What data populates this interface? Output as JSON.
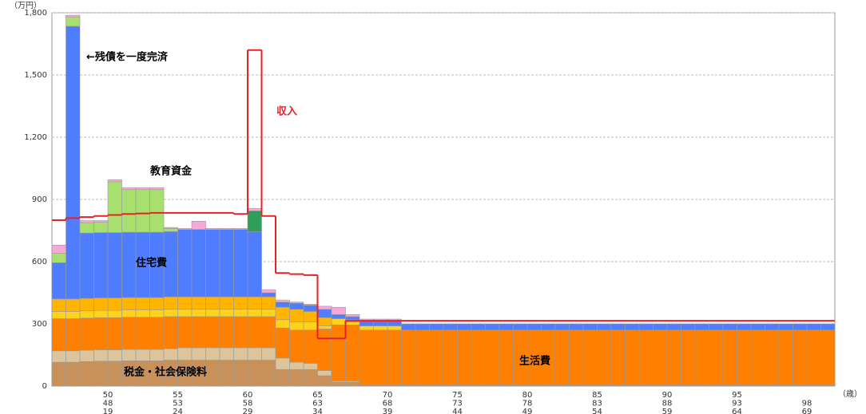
{
  "chart_data": {
    "type": "stacked-bar",
    "y_unit": "（万円）",
    "x_unit": "（歳）",
    "annotation": "←残債を一度完済",
    "ylim": [
      0,
      1800
    ],
    "yticks": [
      0,
      300,
      600,
      900,
      {
        "value": 1200,
        "label": "1,200"
      },
      {
        "value": 1500,
        "label": "1,500"
      },
      {
        "value": 1800,
        "label": "1,800"
      }
    ],
    "grid": true,
    "categories": [
      null,
      null,
      null,
      null,
      [
        "50",
        "48",
        "19"
      ],
      null,
      null,
      null,
      null,
      [
        "55",
        "53",
        "24"
      ],
      null,
      null,
      null,
      null,
      [
        "60",
        "58",
        "29"
      ],
      null,
      null,
      null,
      null,
      [
        "65",
        "63",
        "34"
      ],
      null,
      null,
      null,
      null,
      [
        "70",
        "68",
        "39"
      ],
      null,
      null,
      null,
      null,
      [
        "75",
        "73",
        "44"
      ],
      null,
      null,
      null,
      null,
      [
        "80",
        "78",
        "49"
      ],
      null,
      null,
      null,
      null,
      [
        "85",
        "83",
        "54"
      ],
      null,
      null,
      null,
      null,
      [
        "90",
        "88",
        "59"
      ],
      null,
      null,
      null,
      null,
      [
        "95",
        "93",
        "64"
      ],
      null,
      null,
      null,
      null,
      [
        null,
        "98",
        "69"
      ],
      null
    ],
    "series": [
      {
        "name": "税金・社会保険料",
        "color": "#c8915a",
        "values": [
          115,
          115,
          118,
          120,
          120,
          122,
          122,
          122,
          125,
          125,
          125,
          125,
          125,
          125,
          125,
          125,
          80,
          80,
          80,
          50,
          20,
          20,
          10,
          10,
          10,
          8,
          8,
          8,
          8,
          8,
          8,
          8,
          8,
          8,
          8,
          8,
          8,
          8,
          8,
          8,
          8,
          8,
          8,
          8,
          8,
          8,
          8,
          8,
          8,
          8,
          8,
          8,
          8,
          8,
          8,
          8
        ]
      },
      {
        "color": "#dcc49c",
        "values": [
          55,
          55,
          55,
          55,
          55,
          55,
          55,
          55,
          55,
          60,
          60,
          60,
          60,
          60,
          60,
          60,
          55,
          35,
          30,
          25,
          5,
          5,
          0,
          0,
          0,
          0,
          0,
          0,
          0,
          0,
          0,
          0,
          0,
          0,
          0,
          0,
          0,
          0,
          0,
          0,
          0,
          0,
          0,
          0,
          0,
          0,
          0,
          0,
          0,
          0,
          0,
          0,
          0,
          0,
          0,
          0
        ]
      },
      {
        "name": "生活費",
        "color": "#ff8000",
        "values": [
          155,
          155,
          155,
          155,
          155,
          155,
          155,
          155,
          155,
          150,
          150,
          150,
          150,
          150,
          150,
          150,
          145,
          155,
          160,
          200,
          270,
          270,
          260,
          260,
          260,
          262,
          262,
          262,
          262,
          262,
          262,
          262,
          262,
          262,
          262,
          262,
          262,
          262,
          262,
          262,
          262,
          262,
          262,
          262,
          262,
          262,
          262,
          262,
          262,
          262,
          262,
          262,
          262,
          262,
          262,
          262
        ]
      },
      {
        "color": "#ffd21e",
        "values": [
          35,
          35,
          35,
          35,
          35,
          35,
          35,
          35,
          35,
          35,
          35,
          35,
          35,
          35,
          35,
          35,
          40,
          40,
          40,
          15,
          30,
          15,
          20,
          20,
          20,
          0,
          0,
          0,
          0,
          0,
          0,
          0,
          0,
          0,
          0,
          0,
          0,
          0,
          0,
          0,
          0,
          0,
          0,
          0,
          0,
          0,
          0,
          0,
          0,
          0,
          0,
          0,
          0,
          0,
          0,
          0
        ]
      },
      {
        "color": "#ffb400",
        "values": [
          60,
          60,
          60,
          60,
          60,
          60,
          60,
          60,
          60,
          60,
          60,
          60,
          60,
          60,
          60,
          60,
          60,
          60,
          50,
          40,
          0,
          10,
          0,
          0,
          0,
          0,
          0,
          0,
          0,
          0,
          0,
          0,
          0,
          0,
          0,
          0,
          0,
          0,
          0,
          0,
          0,
          0,
          0,
          0,
          0,
          0,
          0,
          0,
          0,
          0,
          0,
          0,
          0,
          0,
          0,
          0
        ]
      },
      {
        "name": "住宅費",
        "color": "#4f7dff",
        "values": [
          175,
          1315,
          315,
          315,
          315,
          315,
          315,
          315,
          315,
          325,
          325,
          325,
          325,
          325,
          315,
          20,
          25,
          30,
          30,
          40,
          20,
          15,
          25,
          25,
          25,
          30,
          30,
          30,
          30,
          30,
          30,
          30,
          30,
          30,
          30,
          30,
          30,
          30,
          30,
          30,
          30,
          30,
          30,
          30,
          30,
          30,
          30,
          30,
          30,
          30,
          30,
          30,
          30,
          30,
          30,
          30
        ]
      },
      {
        "name": "教育資金",
        "color": "#a8e070",
        "values": [
          45,
          45,
          50,
          50,
          245,
          205,
          205,
          205,
          15,
          0,
          0,
          0,
          0,
          0,
          0,
          0,
          0,
          0,
          0,
          0,
          0,
          0,
          0,
          0,
          0,
          0,
          0,
          0,
          0,
          0,
          0,
          0,
          0,
          0,
          0,
          0,
          0,
          0,
          0,
          0,
          0,
          0,
          0,
          0,
          0,
          0,
          0,
          0,
          0,
          0,
          0,
          0,
          0,
          0,
          0,
          0
        ]
      },
      {
        "color": "#2e9e5a",
        "values": [
          0,
          0,
          0,
          0,
          0,
          0,
          0,
          0,
          0,
          0,
          0,
          0,
          0,
          0,
          100,
          0,
          0,
          0,
          0,
          0,
          0,
          0,
          0,
          0,
          0,
          0,
          0,
          0,
          0,
          0,
          0,
          0,
          0,
          0,
          0,
          0,
          0,
          0,
          0,
          0,
          0,
          0,
          0,
          0,
          0,
          0,
          0,
          0,
          0,
          0,
          0,
          0,
          0,
          0,
          0,
          0
        ]
      },
      {
        "color": "#f7a8d8",
        "values": [
          40,
          8,
          10,
          8,
          10,
          10,
          10,
          10,
          5,
          5,
          40,
          5,
          5,
          5,
          12,
          15,
          10,
          5,
          5,
          15,
          35,
          10,
          8,
          8,
          8,
          0,
          0,
          0,
          0,
          0,
          0,
          0,
          0,
          0,
          0,
          0,
          0,
          0,
          0,
          0,
          0,
          0,
          0,
          0,
          0,
          0,
          0,
          0,
          0,
          0,
          0,
          0,
          0,
          0,
          0,
          0
        ]
      }
    ],
    "income": {
      "name": "収入",
      "color": "#e8202a",
      "values": [
        800,
        810,
        815,
        820,
        825,
        830,
        832,
        835,
        835,
        835,
        835,
        835,
        835,
        830,
        1620,
        820,
        545,
        540,
        535,
        230,
        230,
        315,
        315,
        315,
        315,
        315,
        315,
        315,
        315,
        315,
        315,
        315,
        315,
        315,
        315,
        315,
        315,
        315,
        315,
        315,
        315,
        315,
        315,
        315,
        315,
        315,
        315,
        315,
        315,
        315,
        315,
        315,
        315,
        315,
        315,
        315
      ]
    }
  }
}
